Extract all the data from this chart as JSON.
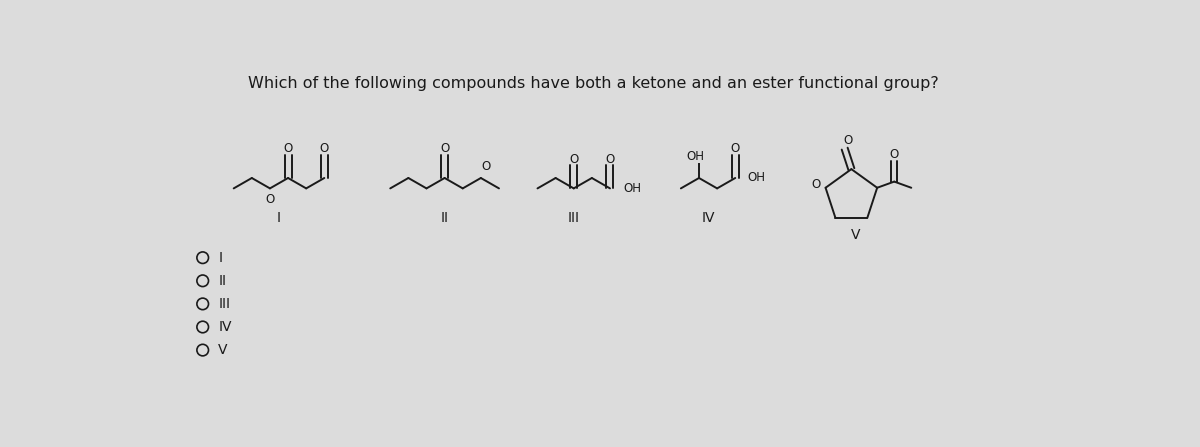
{
  "title": "Which of the following compounds have both a ketone and an ester functional group?",
  "title_fontsize": 11.5,
  "background_color": "#dcdcdc",
  "options": [
    "I",
    "II",
    "III",
    "IV",
    "V"
  ],
  "line_color": "#1a1a1a",
  "text_color": "#1a1a1a",
  "compounds": {
    "I_label": "I",
    "II_label": "II",
    "III_label": "III",
    "IV_label": "IV",
    "V_label": "V"
  }
}
